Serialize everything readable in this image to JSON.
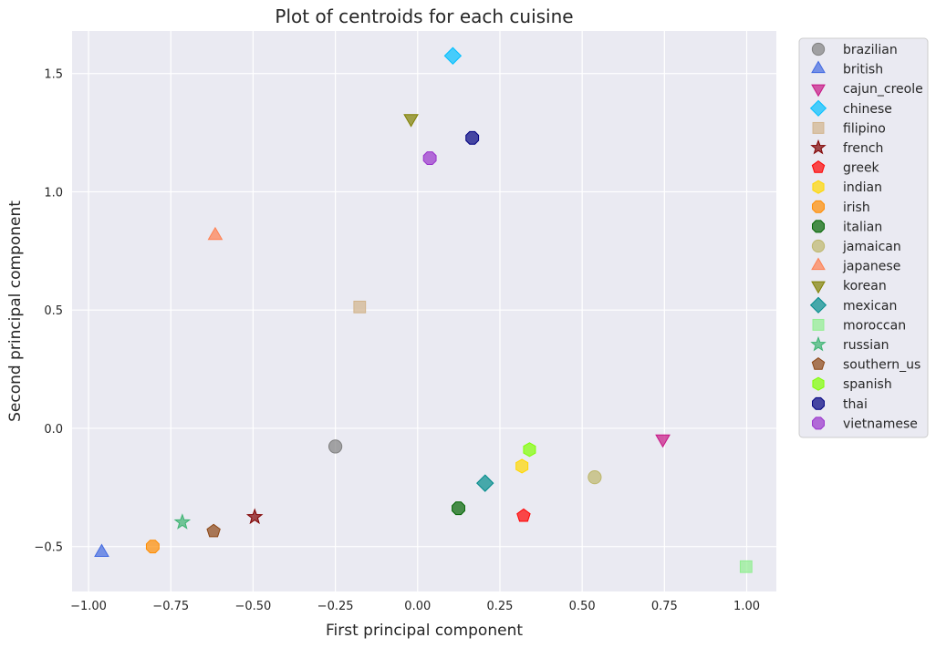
{
  "chart_data": {
    "type": "scatter",
    "title": "Plot of centroids for each cuisine",
    "xlabel": "First principal component",
    "ylabel": "Second principal component",
    "xlim": [
      -1.05,
      1.09
    ],
    "ylim": [
      -0.69,
      1.68
    ],
    "xticks": [
      -1.0,
      -0.75,
      -0.5,
      -0.25,
      0.0,
      0.25,
      0.5,
      0.75,
      1.0
    ],
    "xtick_labels": [
      "−1.00",
      "−0.75",
      "−0.50",
      "−0.25",
      "0.00",
      "0.25",
      "0.50",
      "0.75",
      "1.00"
    ],
    "yticks": [
      -0.5,
      0.0,
      0.5,
      1.0,
      1.5
    ],
    "ytick_labels": [
      "−0.5",
      "0.0",
      "0.5",
      "1.0",
      "1.5"
    ],
    "grid": true,
    "legend_position": "outside-right",
    "series": [
      {
        "name": "brazilian",
        "marker": "circle",
        "color": "#808080",
        "x": -0.25,
        "y": -0.077
      },
      {
        "name": "british",
        "marker": "triangle-up",
        "color": "#4169e1",
        "x": -0.96,
        "y": -0.525
      },
      {
        "name": "cajun_creole",
        "marker": "triangle-down",
        "color": "#c71585",
        "x": 0.745,
        "y": -0.045
      },
      {
        "name": "chinese",
        "marker": "diamond",
        "color": "#00bfff",
        "x": 0.107,
        "y": 1.575
      },
      {
        "name": "filipino",
        "marker": "square",
        "color": "#d2b48c",
        "x": -0.176,
        "y": 0.513
      },
      {
        "name": "french",
        "marker": "star",
        "color": "#800000",
        "x": -0.495,
        "y": -0.375
      },
      {
        "name": "greek",
        "marker": "pentagon",
        "color": "#ff0000",
        "x": 0.322,
        "y": -0.37
      },
      {
        "name": "indian",
        "marker": "hexagon",
        "color": "#ffd700",
        "x": 0.317,
        "y": -0.16
      },
      {
        "name": "irish",
        "marker": "octagon",
        "color": "#ff8c00",
        "x": -0.805,
        "y": -0.5
      },
      {
        "name": "italian",
        "marker": "octagon",
        "color": "#006400",
        "x": 0.124,
        "y": -0.338
      },
      {
        "name": "jamaican",
        "marker": "circle",
        "color": "#bdb76b",
        "x": 0.538,
        "y": -0.207
      },
      {
        "name": "japanese",
        "marker": "triangle-up",
        "color": "#ff7f50",
        "x": -0.615,
        "y": 0.815
      },
      {
        "name": "korean",
        "marker": "triangle-down",
        "color": "#808000",
        "x": -0.02,
        "y": 1.31
      },
      {
        "name": "mexican",
        "marker": "diamond",
        "color": "#008b8b",
        "x": 0.205,
        "y": -0.232
      },
      {
        "name": "moroccan",
        "marker": "square",
        "color": "#90ee90",
        "x": 0.998,
        "y": -0.585
      },
      {
        "name": "russian",
        "marker": "star",
        "color": "#3cb371",
        "x": -0.715,
        "y": -0.397
      },
      {
        "name": "southern_us",
        "marker": "pentagon",
        "color": "#8b4513",
        "x": -0.62,
        "y": -0.435
      },
      {
        "name": "spanish",
        "marker": "hexagon",
        "color": "#7fff00",
        "x": 0.34,
        "y": -0.09
      },
      {
        "name": "thai",
        "marker": "octagon",
        "color": "#000080",
        "x": 0.166,
        "y": 1.228
      },
      {
        "name": "vietnamese",
        "marker": "octagon",
        "color": "#9932cc",
        "x": 0.037,
        "y": 1.142
      }
    ]
  }
}
